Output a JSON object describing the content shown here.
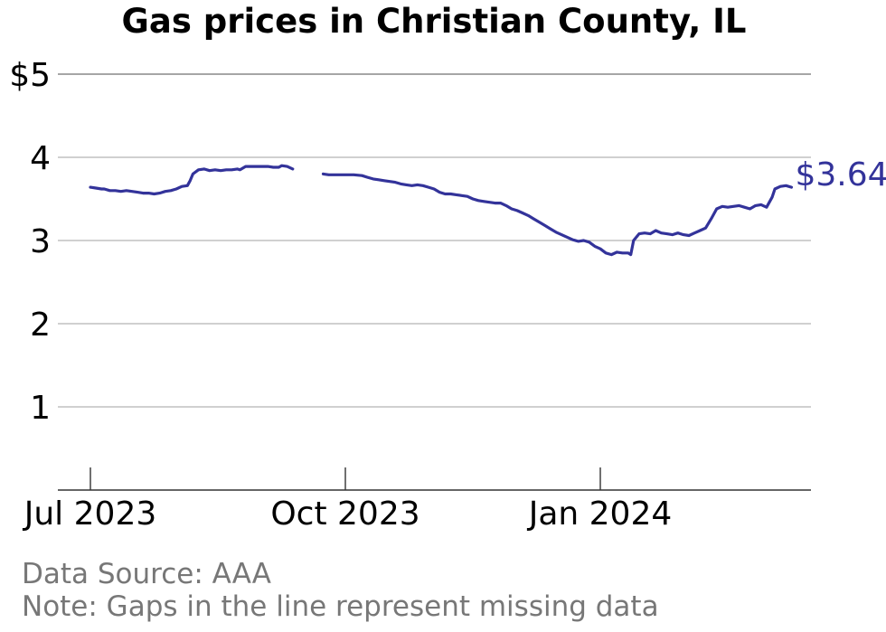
{
  "colors": {
    "series": "#33339a",
    "grid": "#b3b3b3",
    "axis": "#333333",
    "footer": "#777777"
  },
  "footer": {
    "source": "Data Source: AAA",
    "note": "Note: Gaps in the line represent missing data"
  },
  "chart_data": {
    "type": "line",
    "title": "Gas prices in Christian County, IL",
    "xlabel": "",
    "ylabel": "",
    "ylim": [
      0,
      5
    ],
    "yticks": [
      1,
      2,
      3,
      4,
      5
    ],
    "ytick_labels": [
      "1",
      "2",
      "3",
      "4",
      "$5"
    ],
    "xticks": [
      {
        "date": "2023-07-01",
        "label": "Jul 2023"
      },
      {
        "date": "2023-10-01",
        "label": "Oct 2023"
      },
      {
        "date": "2024-01-01",
        "label": "Jan 2024"
      }
    ],
    "grid": true,
    "end_label": "$3.64",
    "series": [
      {
        "segments": [
          [
            [
              "2023-07-01",
              3.64
            ],
            [
              "2023-07-03",
              3.63
            ],
            [
              "2023-07-05",
              3.62
            ],
            [
              "2023-07-06",
              3.62
            ],
            [
              "2023-07-08",
              3.6
            ],
            [
              "2023-07-10",
              3.6
            ],
            [
              "2023-07-12",
              3.59
            ],
            [
              "2023-07-14",
              3.6
            ],
            [
              "2023-07-16",
              3.59
            ],
            [
              "2023-07-18",
              3.58
            ],
            [
              "2023-07-20",
              3.57
            ],
            [
              "2023-07-22",
              3.57
            ],
            [
              "2023-07-24",
              3.56
            ],
            [
              "2023-07-26",
              3.57
            ],
            [
              "2023-07-28",
              3.59
            ],
            [
              "2023-07-30",
              3.6
            ],
            [
              "2023-08-01",
              3.62
            ],
            [
              "2023-08-03",
              3.65
            ],
            [
              "2023-08-05",
              3.66
            ],
            [
              "2023-08-06",
              3.72
            ],
            [
              "2023-08-07",
              3.8
            ],
            [
              "2023-08-09",
              3.85
            ],
            [
              "2023-08-11",
              3.86
            ],
            [
              "2023-08-13",
              3.84
            ],
            [
              "2023-08-15",
              3.85
            ],
            [
              "2023-08-17",
              3.84
            ],
            [
              "2023-08-19",
              3.85
            ],
            [
              "2023-08-21",
              3.85
            ],
            [
              "2023-08-23",
              3.86
            ],
            [
              "2023-08-24",
              3.85
            ],
            [
              "2023-08-26",
              3.89
            ],
            [
              "2023-08-28",
              3.89
            ],
            [
              "2023-08-30",
              3.89
            ],
            [
              "2023-09-01",
              3.89
            ],
            [
              "2023-09-03",
              3.89
            ],
            [
              "2023-09-05",
              3.88
            ],
            [
              "2023-09-07",
              3.88
            ],
            [
              "2023-09-08",
              3.9
            ],
            [
              "2023-09-10",
              3.89
            ],
            [
              "2023-09-12",
              3.86
            ]
          ],
          [
            [
              "2023-09-23",
              3.8
            ],
            [
              "2023-09-25",
              3.79
            ],
            [
              "2023-09-28",
              3.79
            ],
            [
              "2023-10-01",
              3.79
            ],
            [
              "2023-10-04",
              3.79
            ],
            [
              "2023-10-07",
              3.78
            ],
            [
              "2023-10-09",
              3.76
            ],
            [
              "2023-10-11",
              3.74
            ],
            [
              "2023-10-13",
              3.73
            ],
            [
              "2023-10-15",
              3.72
            ],
            [
              "2023-10-17",
              3.71
            ],
            [
              "2023-10-19",
              3.7
            ],
            [
              "2023-10-21",
              3.68
            ],
            [
              "2023-10-23",
              3.67
            ],
            [
              "2023-10-25",
              3.66
            ],
            [
              "2023-10-27",
              3.67
            ],
            [
              "2023-10-29",
              3.66
            ],
            [
              "2023-10-31",
              3.64
            ],
            [
              "2023-11-02",
              3.62
            ],
            [
              "2023-11-04",
              3.58
            ],
            [
              "2023-11-06",
              3.56
            ],
            [
              "2023-11-08",
              3.56
            ],
            [
              "2023-11-10",
              3.55
            ],
            [
              "2023-11-12",
              3.54
            ],
            [
              "2023-11-14",
              3.53
            ],
            [
              "2023-11-16",
              3.5
            ],
            [
              "2023-11-18",
              3.48
            ],
            [
              "2023-11-20",
              3.47
            ],
            [
              "2023-11-22",
              3.46
            ],
            [
              "2023-11-24",
              3.45
            ],
            [
              "2023-11-26",
              3.45
            ],
            [
              "2023-11-28",
              3.42
            ],
            [
              "2023-11-30",
              3.38
            ],
            [
              "2023-12-02",
              3.36
            ],
            [
              "2023-12-04",
              3.33
            ],
            [
              "2023-12-06",
              3.3
            ],
            [
              "2023-12-08",
              3.26
            ],
            [
              "2023-12-10",
              3.22
            ],
            [
              "2023-12-12",
              3.18
            ],
            [
              "2023-12-14",
              3.14
            ],
            [
              "2023-12-16",
              3.1
            ],
            [
              "2023-12-18",
              3.07
            ],
            [
              "2023-12-20",
              3.04
            ],
            [
              "2023-12-22",
              3.01
            ],
            [
              "2023-12-24",
              2.99
            ],
            [
              "2023-12-26",
              3.0
            ],
            [
              "2023-12-28",
              2.98
            ],
            [
              "2023-12-30",
              2.93
            ],
            [
              "2024-01-01",
              2.9
            ],
            [
              "2024-01-03",
              2.85
            ],
            [
              "2024-01-05",
              2.83
            ],
            [
              "2024-01-07",
              2.86
            ],
            [
              "2024-01-09",
              2.85
            ],
            [
              "2024-01-11",
              2.85
            ],
            [
              "2024-01-12",
              2.83
            ],
            [
              "2024-01-13",
              3.0
            ],
            [
              "2024-01-15",
              3.08
            ],
            [
              "2024-01-17",
              3.09
            ],
            [
              "2024-01-19",
              3.08
            ],
            [
              "2024-01-21",
              3.12
            ],
            [
              "2024-01-23",
              3.09
            ],
            [
              "2024-01-25",
              3.08
            ],
            [
              "2024-01-27",
              3.07
            ],
            [
              "2024-01-29",
              3.09
            ],
            [
              "2024-01-31",
              3.07
            ],
            [
              "2024-02-02",
              3.06
            ],
            [
              "2024-02-04",
              3.09
            ],
            [
              "2024-02-06",
              3.12
            ],
            [
              "2024-02-08",
              3.15
            ],
            [
              "2024-02-10",
              3.26
            ],
            [
              "2024-02-12",
              3.38
            ],
            [
              "2024-02-14",
              3.41
            ],
            [
              "2024-02-16",
              3.4
            ],
            [
              "2024-02-18",
              3.41
            ],
            [
              "2024-02-20",
              3.42
            ],
            [
              "2024-02-22",
              3.4
            ],
            [
              "2024-02-24",
              3.38
            ],
            [
              "2024-02-26",
              3.42
            ],
            [
              "2024-02-28",
              3.43
            ],
            [
              "2024-03-01",
              3.4
            ],
            [
              "2024-03-03",
              3.52
            ],
            [
              "2024-03-04",
              3.62
            ],
            [
              "2024-03-06",
              3.65
            ],
            [
              "2024-03-08",
              3.66
            ],
            [
              "2024-03-10",
              3.64
            ]
          ]
        ]
      }
    ]
  }
}
